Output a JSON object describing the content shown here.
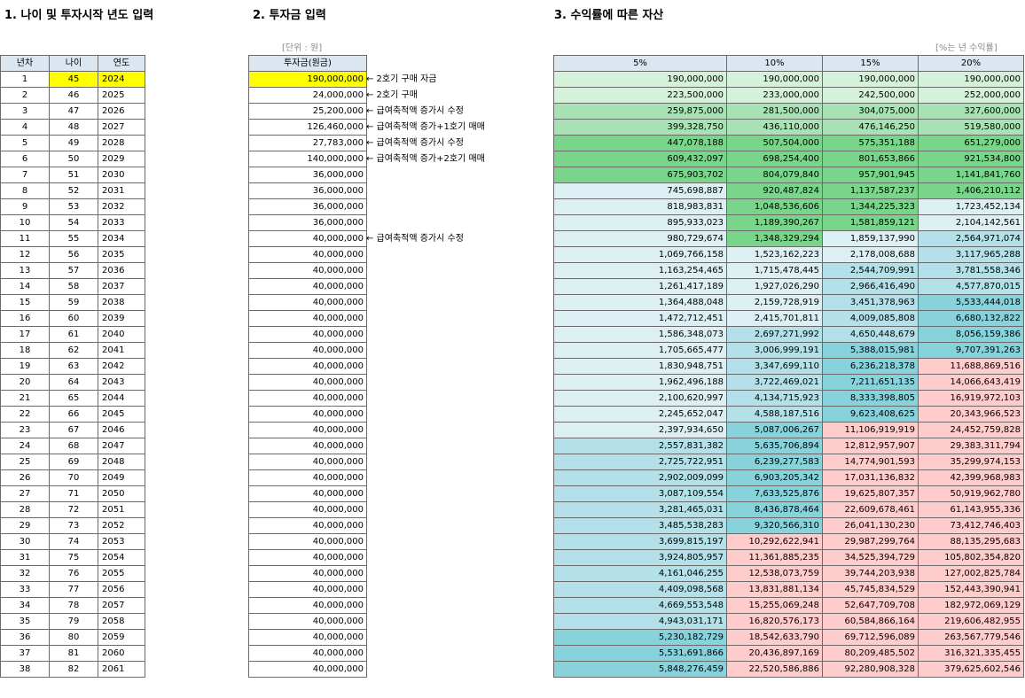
{
  "headings": {
    "age_section": "1. 나이 및 투자시작 년도 입력",
    "invest_section": "2. 투자금 입력",
    "asset_section": "3. 수익률에 따른 자산"
  },
  "units": {
    "invest_unit": "[단위 : 원]",
    "rate_unit": "[%는 년 수익률]"
  },
  "age_table": {
    "headers": [
      "년차",
      "나이",
      "연도"
    ],
    "rows": [
      [
        "1",
        "45",
        "2024"
      ],
      [
        "2",
        "46",
        "2025"
      ],
      [
        "3",
        "47",
        "2026"
      ],
      [
        "4",
        "48",
        "2027"
      ],
      [
        "5",
        "49",
        "2028"
      ],
      [
        "6",
        "50",
        "2029"
      ],
      [
        "7",
        "51",
        "2030"
      ],
      [
        "8",
        "52",
        "2031"
      ],
      [
        "9",
        "53",
        "2032"
      ],
      [
        "10",
        "54",
        "2033"
      ],
      [
        "11",
        "55",
        "2034"
      ],
      [
        "12",
        "56",
        "2035"
      ],
      [
        "13",
        "57",
        "2036"
      ],
      [
        "14",
        "58",
        "2037"
      ],
      [
        "15",
        "59",
        "2038"
      ],
      [
        "16",
        "60",
        "2039"
      ],
      [
        "17",
        "61",
        "2040"
      ],
      [
        "18",
        "62",
        "2041"
      ],
      [
        "19",
        "63",
        "2042"
      ],
      [
        "20",
        "64",
        "2043"
      ],
      [
        "21",
        "65",
        "2044"
      ],
      [
        "22",
        "66",
        "2045"
      ],
      [
        "23",
        "67",
        "2046"
      ],
      [
        "24",
        "68",
        "2047"
      ],
      [
        "25",
        "69",
        "2048"
      ],
      [
        "26",
        "70",
        "2049"
      ],
      [
        "27",
        "71",
        "2050"
      ],
      [
        "28",
        "72",
        "2051"
      ],
      [
        "29",
        "73",
        "2052"
      ],
      [
        "30",
        "74",
        "2053"
      ],
      [
        "31",
        "75",
        "2054"
      ],
      [
        "32",
        "76",
        "2055"
      ],
      [
        "33",
        "77",
        "2056"
      ],
      [
        "34",
        "78",
        "2057"
      ],
      [
        "35",
        "79",
        "2058"
      ],
      [
        "36",
        "80",
        "2059"
      ],
      [
        "37",
        "81",
        "2060"
      ],
      [
        "38",
        "82",
        "2061"
      ]
    ]
  },
  "invest_table": {
    "header": "투자금(원금)",
    "values": [
      "190,000,000",
      "24,000,000",
      "25,200,000",
      "126,460,000",
      "27,783,000",
      "140,000,000",
      "36,000,000",
      "36,000,000",
      "36,000,000",
      "36,000,000",
      "40,000,000",
      "40,000,000",
      "40,000,000",
      "40,000,000",
      "40,000,000",
      "40,000,000",
      "40,000,000",
      "40,000,000",
      "40,000,000",
      "40,000,000",
      "40,000,000",
      "40,000,000",
      "40,000,000",
      "40,000,000",
      "40,000,000",
      "40,000,000",
      "40,000,000",
      "40,000,000",
      "40,000,000",
      "40,000,000",
      "40,000,000",
      "40,000,000",
      "40,000,000",
      "40,000,000",
      "40,000,000",
      "40,000,000",
      "40,000,000",
      "40,000,000"
    ],
    "notes": [
      {
        "row": 0,
        "text": "← 2호기 구매 자금"
      },
      {
        "row": 1,
        "text": "← 2호기 구매"
      },
      {
        "row": 2,
        "text": "← 급여축적액 증가시 수정"
      },
      {
        "row": 3,
        "text": "← 급여축적액 증가+1호기 매매"
      },
      {
        "row": 4,
        "text": "← 급여축적액 증가시 수정"
      },
      {
        "row": 5,
        "text": "← 급여축적액 증가+2호기 매매"
      },
      {
        "row": 10,
        "text": "← 급여축적액 증가시 수정"
      }
    ]
  },
  "asset_table": {
    "headers": [
      "5%",
      "10%",
      "15%",
      "20%"
    ],
    "rows": [
      [
        "190,000,000",
        "190,000,000",
        "190,000,000",
        "190,000,000"
      ],
      [
        "223,500,000",
        "233,000,000",
        "242,500,000",
        "252,000,000"
      ],
      [
        "259,875,000",
        "281,500,000",
        "304,075,000",
        "327,600,000"
      ],
      [
        "399,328,750",
        "436,110,000",
        "476,146,250",
        "519,580,000"
      ],
      [
        "447,078,188",
        "507,504,000",
        "575,351,188",
        "651,279,000"
      ],
      [
        "609,432,097",
        "698,254,400",
        "801,653,866",
        "921,534,800"
      ],
      [
        "675,903,702",
        "804,079,840",
        "957,901,945",
        "1,141,841,760"
      ],
      [
        "745,698,887",
        "920,487,824",
        "1,137,587,237",
        "1,406,210,112"
      ],
      [
        "818,983,831",
        "1,048,536,606",
        "1,344,225,323",
        "1,723,452,134"
      ],
      [
        "895,933,023",
        "1,189,390,267",
        "1,581,859,121",
        "2,104,142,561"
      ],
      [
        "980,729,674",
        "1,348,329,294",
        "1,859,137,990",
        "2,564,971,074"
      ],
      [
        "1,069,766,158",
        "1,523,162,223",
        "2,178,008,688",
        "3,117,965,288"
      ],
      [
        "1,163,254,465",
        "1,715,478,445",
        "2,544,709,991",
        "3,781,558,346"
      ],
      [
        "1,261,417,189",
        "1,927,026,290",
        "2,966,416,490",
        "4,577,870,015"
      ],
      [
        "1,364,488,048",
        "2,159,728,919",
        "3,451,378,963",
        "5,533,444,018"
      ],
      [
        "1,472,712,451",
        "2,415,701,811",
        "4,009,085,808",
        "6,680,132,822"
      ],
      [
        "1,586,348,073",
        "2,697,271,992",
        "4,650,448,679",
        "8,056,159,386"
      ],
      [
        "1,705,665,477",
        "3,006,999,191",
        "5,388,015,981",
        "9,707,391,263"
      ],
      [
        "1,830,948,751",
        "3,347,699,110",
        "6,236,218,378",
        "11,688,869,516"
      ],
      [
        "1,962,496,188",
        "3,722,469,021",
        "7,211,651,135",
        "14,066,643,419"
      ],
      [
        "2,100,620,997",
        "4,134,715,923",
        "8,333,398,805",
        "16,919,972,103"
      ],
      [
        "2,245,652,047",
        "4,588,187,516",
        "9,623,408,625",
        "20,343,966,523"
      ],
      [
        "2,397,934,650",
        "5,087,006,267",
        "11,106,919,919",
        "24,452,759,828"
      ],
      [
        "2,557,831,382",
        "5,635,706,894",
        "12,812,957,907",
        "29,383,311,794"
      ],
      [
        "2,725,722,951",
        "6,239,277,583",
        "14,774,901,593",
        "35,299,974,153"
      ],
      [
        "2,902,009,099",
        "6,903,205,342",
        "17,031,136,832",
        "42,399,968,983"
      ],
      [
        "3,087,109,554",
        "7,633,525,876",
        "19,625,807,357",
        "50,919,962,780"
      ],
      [
        "3,281,465,031",
        "8,436,878,464",
        "22,609,678,461",
        "61,143,955,336"
      ],
      [
        "3,485,538,283",
        "9,320,566,310",
        "26,041,130,230",
        "73,412,746,403"
      ],
      [
        "3,699,815,197",
        "10,292,622,941",
        "29,987,299,764",
        "88,135,295,683"
      ],
      [
        "3,924,805,957",
        "11,361,885,235",
        "34,525,394,729",
        "105,802,354,820"
      ],
      [
        "4,161,046,255",
        "12,538,073,759",
        "39,744,203,938",
        "127,002,825,784"
      ],
      [
        "4,409,098,568",
        "13,831,881,134",
        "45,745,834,529",
        "152,443,390,941"
      ],
      [
        "4,669,553,548",
        "15,255,069,248",
        "52,647,709,708",
        "182,972,069,129"
      ],
      [
        "4,943,031,171",
        "16,820,576,173",
        "60,584,866,164",
        "219,606,482,955"
      ],
      [
        "5,230,182,729",
        "18,542,633,790",
        "69,712,596,089",
        "263,567,779,546"
      ],
      [
        "5,531,691,866",
        "20,436,897,169",
        "80,209,485,502",
        "316,321,335,455"
      ],
      [
        "5,848,276,459",
        "22,520,586,886",
        "92,280,908,328",
        "379,625,602,546"
      ]
    ]
  },
  "colors": {
    "yellow_highlight": "#ffff00",
    "green_dark": "#79d58a",
    "green_mid": "#a9e2b4",
    "green_light": "#d6f1d9",
    "cyan_light": "#dcf0f4",
    "cyan_mid": "#b3e0e9",
    "cyan_dark": "#88d2dc",
    "pink": "#ffcccc"
  }
}
